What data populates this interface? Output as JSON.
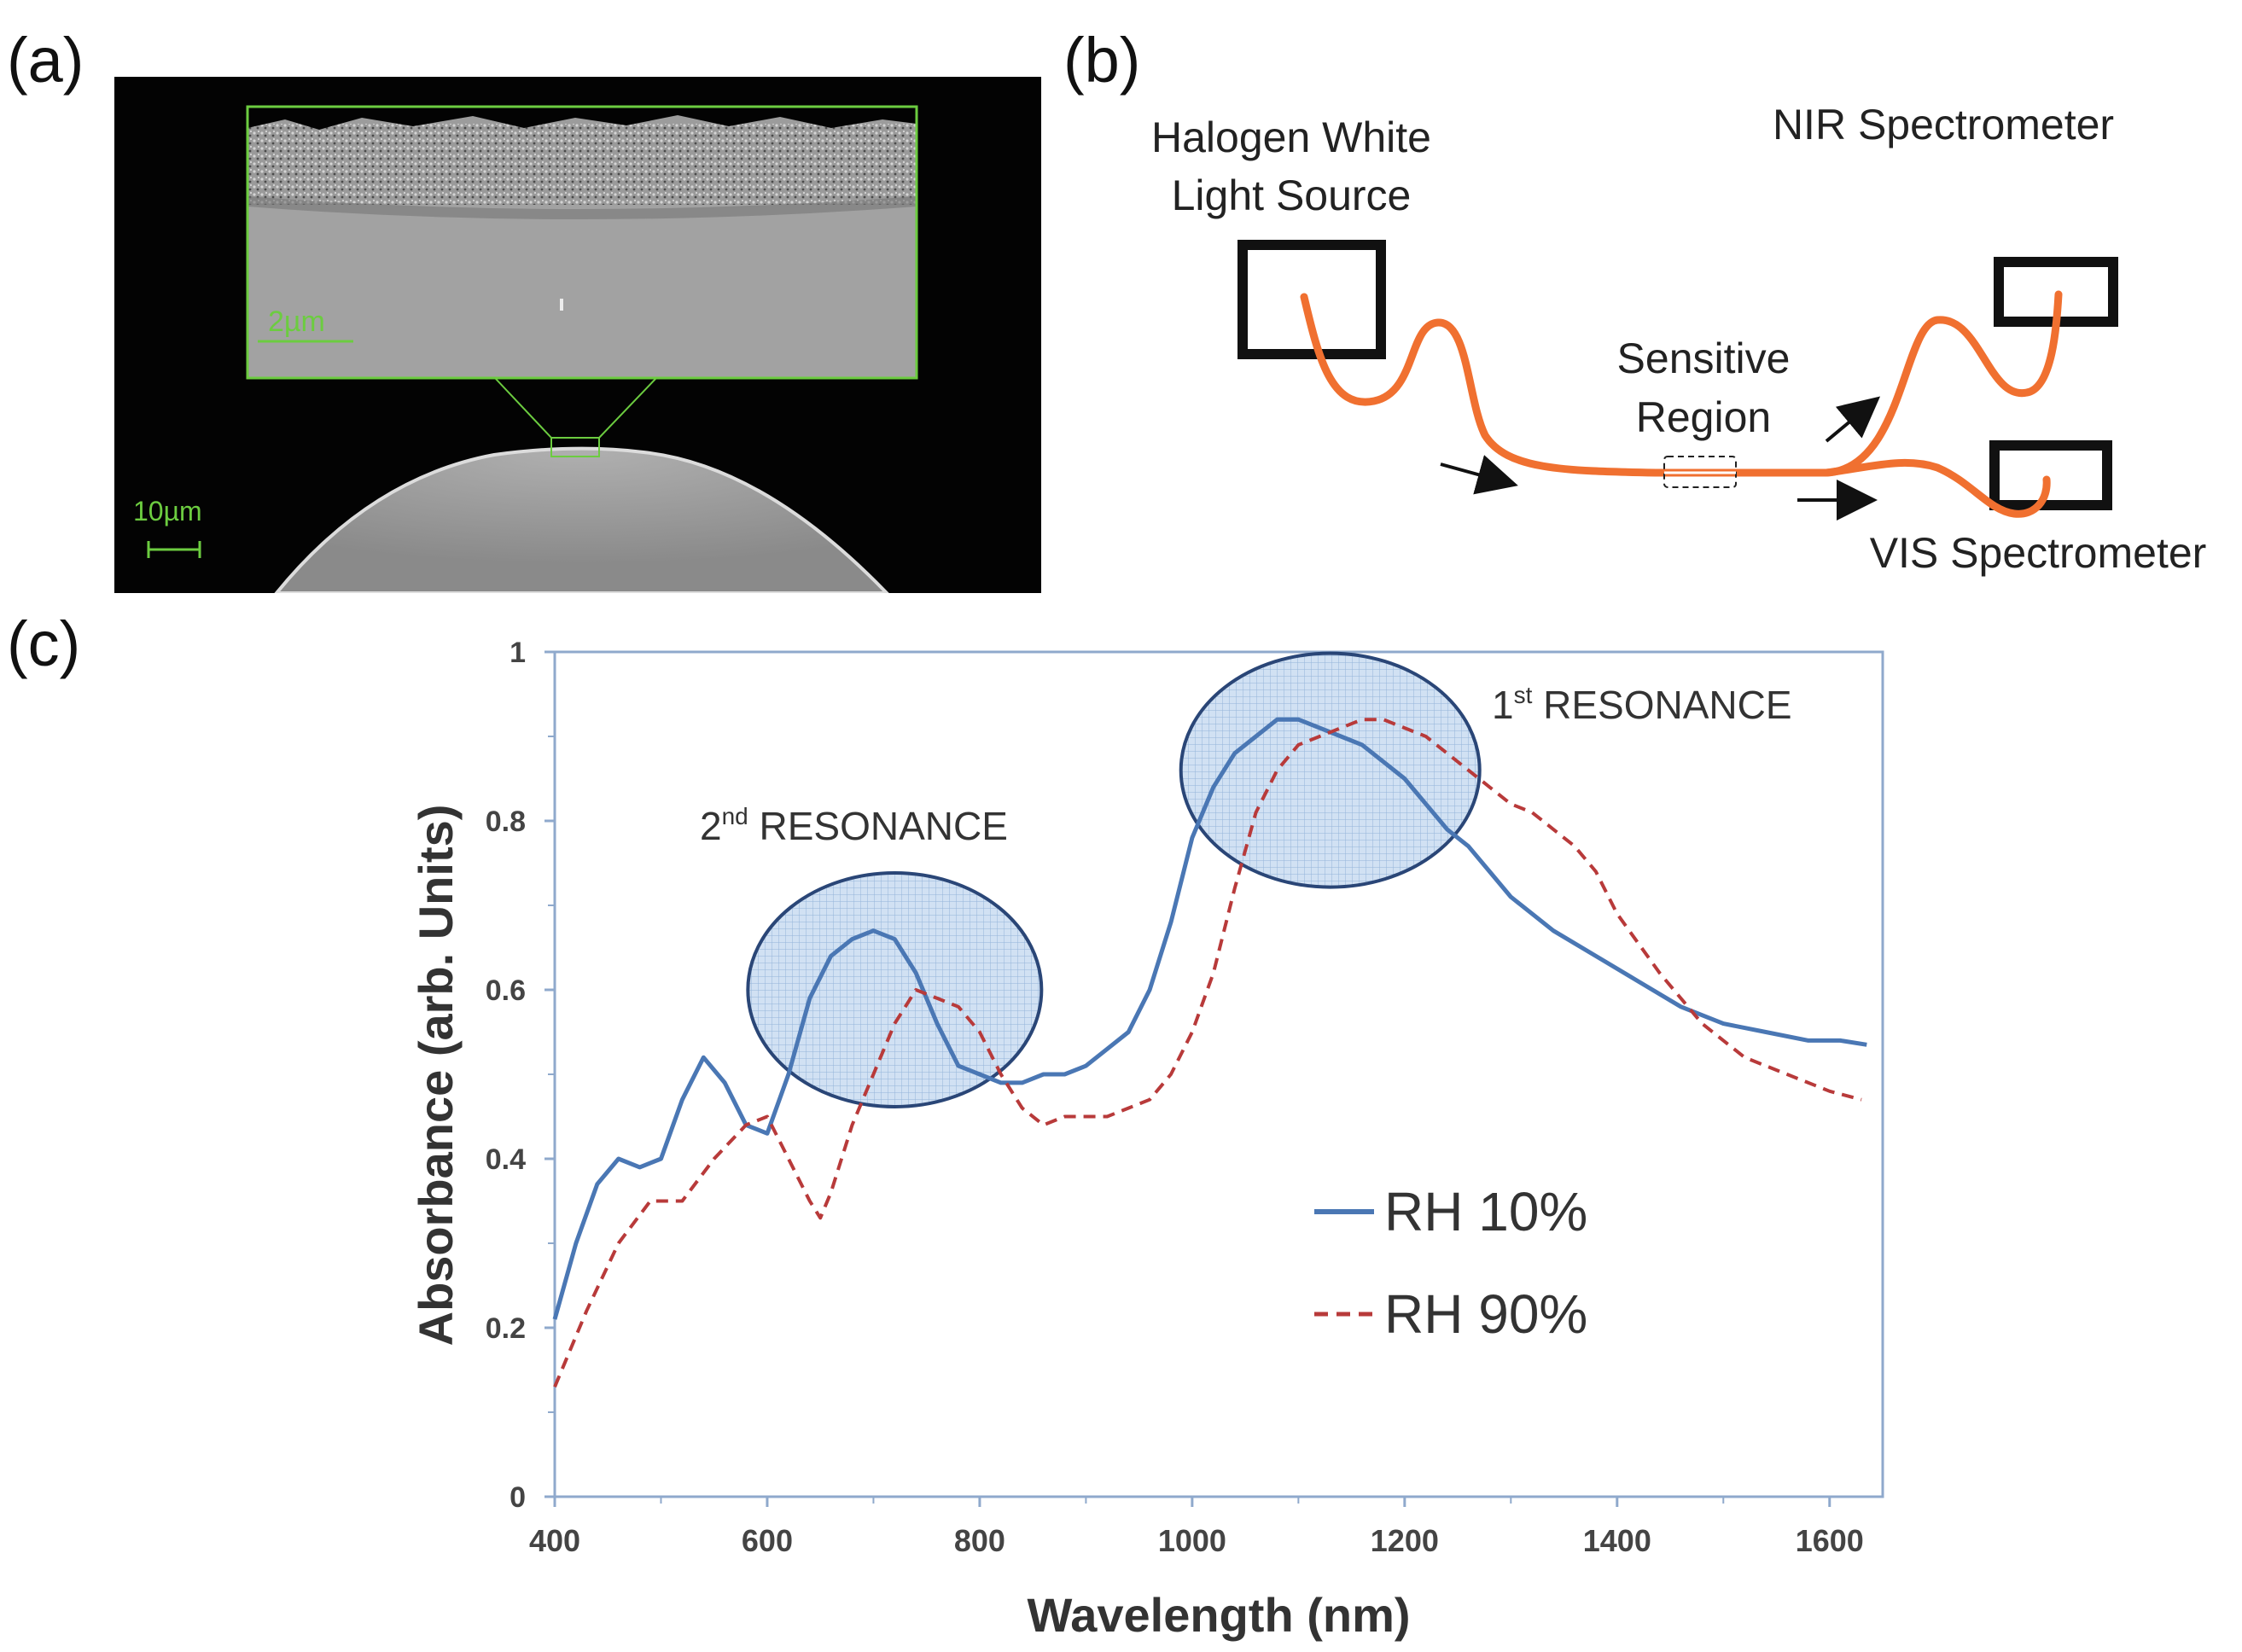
{
  "panels": {
    "a": {
      "label": "(a)",
      "scale_inset": "2µm",
      "scale_main": "10µm"
    },
    "b": {
      "label": "(b)",
      "source_line1": "Halogen White",
      "source_line2": "Light Source",
      "nir": "NIR Spectrometer",
      "vis": "VIS Spectrometer",
      "sensitive_line1": "Sensitive",
      "sensitive_line2": "Region"
    },
    "c": {
      "label": "(c)"
    }
  },
  "colors": {
    "fiber": "#f07030",
    "rh10": "#4a77b4",
    "rh90": "#b83a3a",
    "sem_green": "#6ccc40",
    "ellipse_fill": "#cfe0f3",
    "ellipse_stroke": "#1f3d70"
  },
  "chart_data": {
    "type": "line",
    "xlabel": "Wavelength (nm)",
    "ylabel": "Absorbance (arb. Units)",
    "xlim": [
      400,
      1650
    ],
    "ylim": [
      0,
      1
    ],
    "xticks": [
      400,
      600,
      800,
      1000,
      1200,
      1400,
      1600
    ],
    "yticks": [
      0,
      0.2,
      0.4,
      0.6,
      0.8,
      1
    ],
    "ytick_labels": [
      "0",
      "0.2",
      "0.4",
      "0.6",
      "0.8",
      "1"
    ],
    "grid": false,
    "legend": "center-right",
    "series": [
      {
        "name": "RH 10%",
        "style": "solid",
        "x": [
          400,
          420,
          440,
          460,
          480,
          500,
          520,
          540,
          560,
          580,
          600,
          620,
          640,
          660,
          680,
          700,
          720,
          740,
          760,
          780,
          800,
          820,
          840,
          860,
          880,
          900,
          920,
          940,
          960,
          980,
          1000,
          1020,
          1040,
          1060,
          1080,
          1100,
          1120,
          1140,
          1160,
          1180,
          1200,
          1220,
          1240,
          1260,
          1280,
          1300,
          1340,
          1380,
          1420,
          1460,
          1500,
          1540,
          1580,
          1610,
          1635
        ],
        "y": [
          0.21,
          0.3,
          0.37,
          0.4,
          0.39,
          0.4,
          0.47,
          0.52,
          0.49,
          0.44,
          0.43,
          0.5,
          0.59,
          0.64,
          0.66,
          0.67,
          0.66,
          0.62,
          0.56,
          0.51,
          0.5,
          0.49,
          0.49,
          0.5,
          0.5,
          0.51,
          0.53,
          0.55,
          0.6,
          0.68,
          0.78,
          0.84,
          0.88,
          0.9,
          0.92,
          0.92,
          0.91,
          0.9,
          0.89,
          0.87,
          0.85,
          0.82,
          0.79,
          0.77,
          0.74,
          0.71,
          0.67,
          0.64,
          0.61,
          0.58,
          0.56,
          0.55,
          0.54,
          0.54,
          0.535
        ]
      },
      {
        "name": "RH 90%",
        "style": "dashed",
        "x": [
          400,
          430,
          460,
          490,
          520,
          550,
          580,
          600,
          620,
          640,
          650,
          660,
          680,
          700,
          720,
          740,
          760,
          780,
          800,
          820,
          840,
          860,
          880,
          900,
          920,
          940,
          960,
          980,
          1000,
          1020,
          1040,
          1060,
          1080,
          1100,
          1120,
          1140,
          1160,
          1180,
          1200,
          1220,
          1240,
          1260,
          1280,
          1300,
          1320,
          1340,
          1360,
          1380,
          1400,
          1440,
          1480,
          1520,
          1560,
          1600,
          1630
        ],
        "y": [
          0.13,
          0.22,
          0.3,
          0.35,
          0.35,
          0.4,
          0.44,
          0.45,
          0.4,
          0.35,
          0.33,
          0.36,
          0.44,
          0.5,
          0.56,
          0.6,
          0.59,
          0.58,
          0.55,
          0.5,
          0.46,
          0.44,
          0.45,
          0.45,
          0.45,
          0.46,
          0.47,
          0.5,
          0.55,
          0.62,
          0.72,
          0.81,
          0.86,
          0.89,
          0.9,
          0.91,
          0.92,
          0.92,
          0.91,
          0.9,
          0.88,
          0.86,
          0.84,
          0.82,
          0.81,
          0.79,
          0.77,
          0.74,
          0.69,
          0.62,
          0.56,
          0.52,
          0.5,
          0.48,
          0.47
        ]
      }
    ],
    "annotations": [
      {
        "text_main": "RESONANCE",
        "ordinal": "2",
        "suffix": "nd",
        "x": 720,
        "y": 0.6
      },
      {
        "text_main": "RESONANCE",
        "ordinal": "1",
        "suffix": "st",
        "x": 1130,
        "y": 0.86
      }
    ]
  }
}
